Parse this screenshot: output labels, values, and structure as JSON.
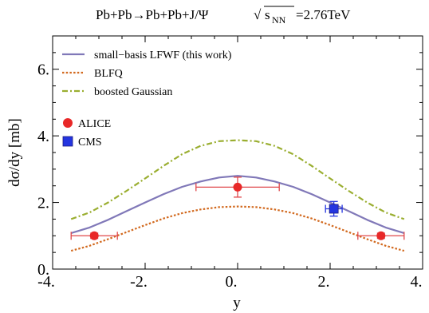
{
  "chart_data": {
    "type": "line",
    "title": {
      "process": "Pb+Pb→Pb+Pb+J/Ψ",
      "sqrt_symbol": "√",
      "energy_var": "s",
      "energy_sub": "NN",
      "energy_value": "=2.76TeV"
    },
    "xlabel": "y",
    "ylabel": "dσ/dy  [mb]",
    "xlim": [
      -4,
      4
    ],
    "ylim": [
      0,
      7
    ],
    "xticks": [
      {
        "value": -4,
        "label": "-4."
      },
      {
        "value": -2,
        "label": "-2."
      },
      {
        "value": 0,
        "label": "0."
      },
      {
        "value": 2,
        "label": "2."
      },
      {
        "value": 4,
        "label": "4."
      }
    ],
    "yticks": [
      {
        "value": 0,
        "label": "0."
      },
      {
        "value": 2,
        "label": "2."
      },
      {
        "value": 4,
        "label": "4."
      },
      {
        "value": 6,
        "label": "6."
      }
    ],
    "legend_position": "top-left",
    "series": [
      {
        "name": "small−basis LFWF (this work)",
        "style": "solid",
        "color": "#8078b8",
        "x": [
          -3.6,
          -3.2,
          -2.8,
          -2.4,
          -2.0,
          -1.6,
          -1.2,
          -0.8,
          -0.4,
          0.0,
          0.4,
          0.8,
          1.2,
          1.6,
          2.0,
          2.4,
          2.8,
          3.2,
          3.6
        ],
        "y": [
          1.08,
          1.25,
          1.48,
          1.74,
          2.0,
          2.25,
          2.47,
          2.63,
          2.75,
          2.8,
          2.75,
          2.63,
          2.47,
          2.25,
          2.0,
          1.74,
          1.48,
          1.25,
          1.08
        ]
      },
      {
        "name": "BLFQ",
        "style": "dotted",
        "color": "#d2691e",
        "x": [
          -3.6,
          -3.2,
          -2.8,
          -2.4,
          -2.0,
          -1.6,
          -1.2,
          -0.8,
          -0.4,
          0.0,
          0.4,
          0.8,
          1.2,
          1.6,
          2.0,
          2.4,
          2.8,
          3.2,
          3.6
        ],
        "y": [
          0.55,
          0.7,
          0.9,
          1.11,
          1.32,
          1.52,
          1.68,
          1.79,
          1.86,
          1.88,
          1.86,
          1.79,
          1.68,
          1.52,
          1.32,
          1.11,
          0.9,
          0.7,
          0.55
        ]
      },
      {
        "name": "boosted Gaussian",
        "style": "dashed",
        "color": "#9aae30",
        "x": [
          -3.6,
          -3.2,
          -2.8,
          -2.4,
          -2.0,
          -1.6,
          -1.2,
          -0.8,
          -0.4,
          0.0,
          0.4,
          0.8,
          1.2,
          1.6,
          2.0,
          2.4,
          2.8,
          3.2,
          3.6
        ],
        "y": [
          1.5,
          1.7,
          2.0,
          2.35,
          2.72,
          3.1,
          3.45,
          3.7,
          3.84,
          3.87,
          3.84,
          3.7,
          3.45,
          3.1,
          2.72,
          2.35,
          2.0,
          1.7,
          1.5
        ]
      }
    ],
    "points": [
      {
        "name": "ALICE",
        "marker": "circle",
        "color": "#e82828",
        "data": [
          {
            "x": -3.1,
            "y": 1.0,
            "xerr": [
              0.5,
              0.5
            ],
            "yerr": [
              0.08,
              0.08
            ]
          },
          {
            "x": 0.0,
            "y": 2.46,
            "xerr": [
              0.9,
              0.9
            ],
            "yerr": [
              0.3,
              0.3
            ]
          },
          {
            "x": 3.1,
            "y": 1.0,
            "xerr": [
              0.5,
              0.5
            ],
            "yerr": [
              0.08,
              0.08
            ]
          }
        ]
      },
      {
        "name": "CMS",
        "marker": "square",
        "color": "#2435e0",
        "data": [
          {
            "x": 2.08,
            "y": 1.81,
            "xerr": [
              0.18,
              0.18
            ],
            "yerr": [
              0.22,
              0.22
            ]
          }
        ]
      }
    ]
  }
}
